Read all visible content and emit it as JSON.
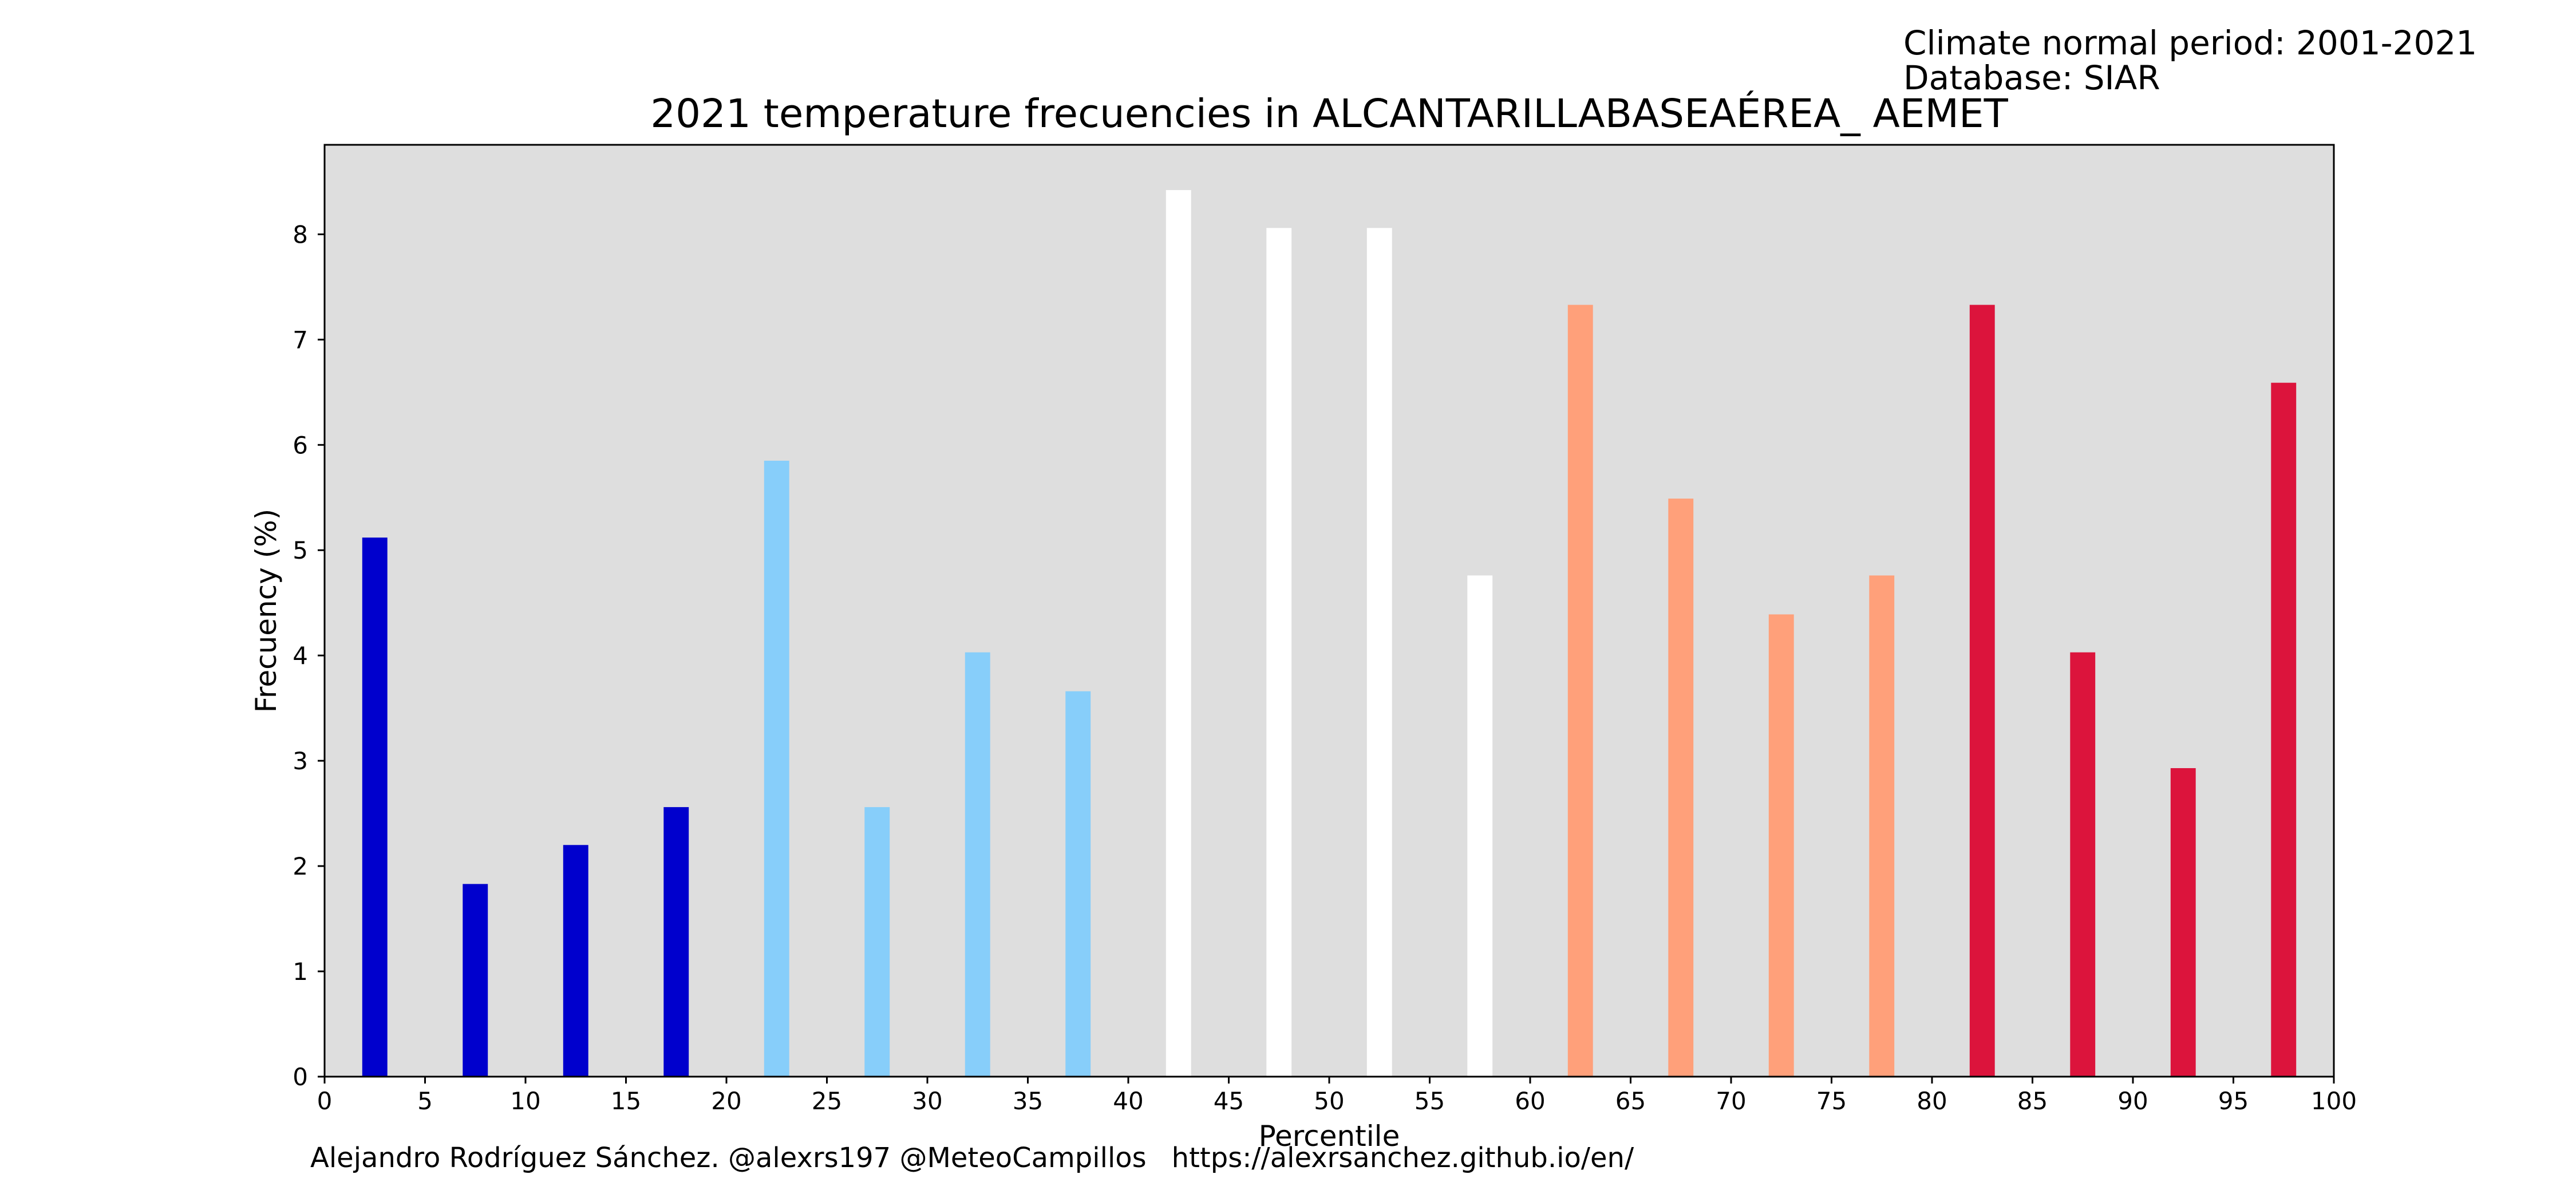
{
  "header": {
    "climate_period": "Climate normal period: 2001-2021",
    "database": "Database: SIAR"
  },
  "footer": {
    "author": "Alejandro Rodríguez Sánchez. @alexrs197 @MeteoCampillos",
    "url": "https://alexrsanchez.github.io/en/"
  },
  "chart_data": {
    "type": "bar",
    "title": "2021 temperature frecuencies in ALCANTARILLABASEAÉREA_ AEMET",
    "xlabel": "Percentile",
    "ylabel": "Frecuency (%)",
    "xlim": [
      0,
      100
    ],
    "ylim": [
      0,
      8.85
    ],
    "xticks": [
      0,
      5,
      10,
      15,
      20,
      25,
      30,
      35,
      40,
      45,
      50,
      55,
      60,
      65,
      70,
      75,
      80,
      85,
      90,
      95,
      100
    ],
    "yticks": [
      0,
      1,
      2,
      3,
      4,
      5,
      6,
      7,
      8
    ],
    "bar_width": 1.25,
    "background_color": "#dedede",
    "x": [
      2.5,
      7.5,
      12.5,
      17.5,
      22.5,
      27.5,
      32.5,
      37.5,
      42.5,
      47.5,
      52.5,
      57.5,
      62.5,
      67.5,
      72.5,
      77.5,
      82.5,
      87.5,
      92.5,
      97.5
    ],
    "values": [
      5.12,
      1.83,
      2.2,
      2.56,
      5.85,
      2.56,
      4.03,
      3.66,
      8.42,
      8.06,
      8.06,
      4.76,
      7.33,
      5.49,
      4.39,
      4.76,
      7.33,
      4.03,
      2.93,
      6.59
    ],
    "colors": [
      "#0000cd",
      "#0000cd",
      "#0000cd",
      "#0000cd",
      "#87cefa",
      "#87cefa",
      "#87cefa",
      "#87cefa",
      "#ffffff",
      "#ffffff",
      "#ffffff",
      "#ffffff",
      "#ffa07a",
      "#ffa07a",
      "#ffa07a",
      "#ffa07a",
      "#dc143c",
      "#dc143c",
      "#dc143c",
      "#dc143c"
    ]
  }
}
